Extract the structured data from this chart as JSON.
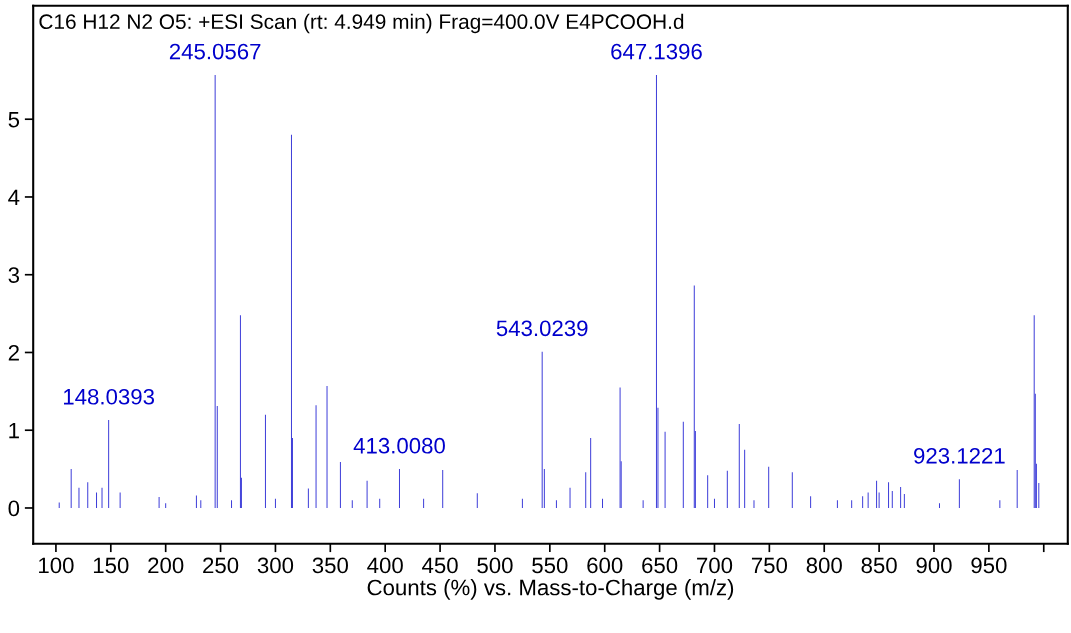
{
  "chart_data": {
    "type": "bar",
    "title": "C16 H12 N2 O5: +ESI Scan (rt: 4.949 min) Frag=400.0V E4PCOOH.d",
    "xlabel": "Counts (%) vs. Mass-to-Charge (m/z)",
    "x": [
      103,
      113.9,
      121,
      129,
      137,
      142,
      148.04,
      158.5,
      194,
      200,
      228,
      232,
      245.06,
      247,
      260,
      268.1,
      269,
      290.9,
      300,
      314.6,
      315.5,
      330,
      337,
      347,
      359.2,
      370,
      383.5,
      395,
      413.01,
      435,
      452.4,
      483.9,
      525,
      543.02,
      545,
      556,
      568.4,
      582.7,
      587.2,
      598,
      614,
      615,
      635,
      647.14,
      648.5,
      655,
      671.6,
      681.6,
      682.6,
      693.8,
      700,
      711.7,
      722.6,
      727.5,
      736,
      749.4,
      770.9,
      787.6,
      812,
      825,
      835,
      840,
      847.7,
      850,
      858.6,
      862,
      869.6,
      873,
      905,
      923.12,
      960,
      975.8,
      991.3,
      992.3,
      993.3,
      995.5
    ],
    "values": [
      0.07,
      0.5,
      0.26,
      0.33,
      0.2,
      0.26,
      1.13,
      0.2,
      0.14,
      0.06,
      0.16,
      0.1,
      5.57,
      1.31,
      0.1,
      2.48,
      0.39,
      1.2,
      0.12,
      4.8,
      0.9,
      0.25,
      1.32,
      1.57,
      0.59,
      0.1,
      0.35,
      0.12,
      0.5,
      0.12,
      0.49,
      0.19,
      0.12,
      2.01,
      0.5,
      0.1,
      0.26,
      0.46,
      0.9,
      0.12,
      1.55,
      0.6,
      0.1,
      5.57,
      1.29,
      0.98,
      1.11,
      2.86,
      0.99,
      0.42,
      0.12,
      0.48,
      1.08,
      0.75,
      0.1,
      0.53,
      0.46,
      0.15,
      0.1,
      0.1,
      0.15,
      0.2,
      0.35,
      0.2,
      0.33,
      0.22,
      0.27,
      0.18,
      0.06,
      0.37,
      0.1,
      0.49,
      2.48,
      1.47,
      0.57,
      0.32
    ],
    "color": "#3a3ad8",
    "xlim": [
      79.3,
      1021.9
    ],
    "xticks": [
      100,
      150,
      200,
      250,
      300,
      350,
      400,
      450,
      500,
      550,
      600,
      650,
      700,
      750,
      800,
      850,
      900,
      950,
      {
        "value": 1000,
        "label": null
      }
    ],
    "ylim": [
      -0.46,
      6.46
    ],
    "yticks": [
      0,
      1,
      2,
      3,
      4,
      5
    ],
    "annotations": [
      {
        "text": "148.0393",
        "x": 148.04,
        "y": 1.13
      },
      {
        "text": "245.0567",
        "x": 245.06,
        "y": 5.57
      },
      {
        "text": "413.0080",
        "x": 413.01,
        "y": 0.5
      },
      {
        "text": "543.0239",
        "x": 543.02,
        "y": 2.01
      },
      {
        "text": "647.1396",
        "x": 647.14,
        "y": 5.57
      },
      {
        "text": "923.1221",
        "x": 923.12,
        "y": 0.37
      }
    ],
    "grid": false
  }
}
